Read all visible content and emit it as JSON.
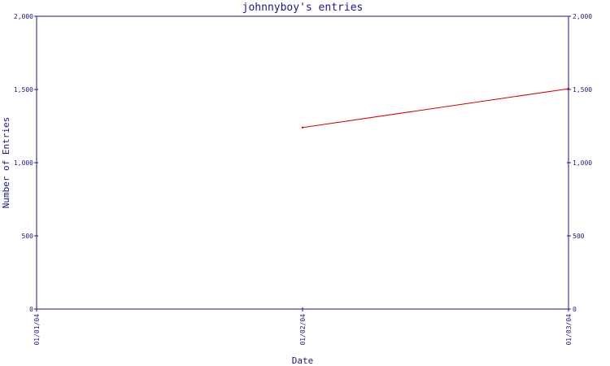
{
  "chart_data": {
    "type": "line",
    "title": "johnnyboy's entries",
    "xlabel": "Date",
    "ylabel": "Number of Entries",
    "x": [
      "01/01/04",
      "01/02/04",
      "01/03/04"
    ],
    "series": [
      {
        "values": [
          null,
          1240,
          1505
        ],
        "color": "#cc0000"
      }
    ],
    "ylim": [
      0,
      2000
    ],
    "yticks": [
      0,
      500,
      1000,
      1500,
      2000
    ],
    "ytick_labels": [
      "0",
      "500",
      "1,000",
      "1,500",
      "2,000"
    ],
    "grid": false,
    "legend": "none",
    "axis_color": "#1a1a80"
  }
}
